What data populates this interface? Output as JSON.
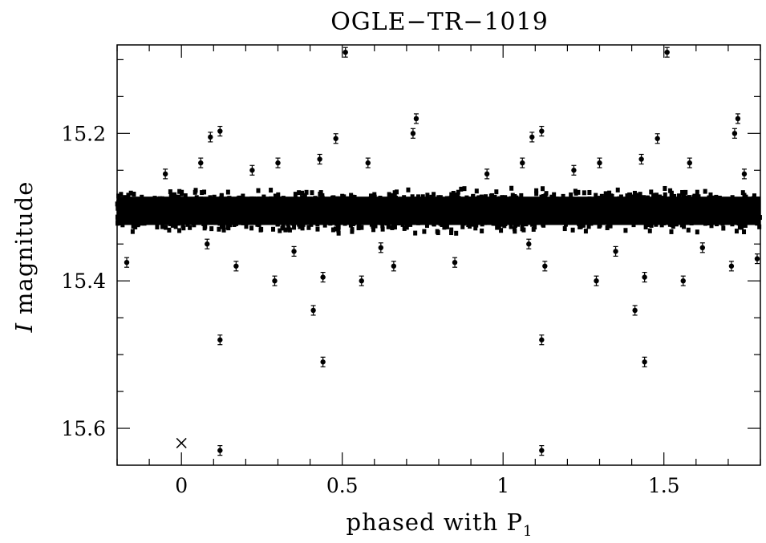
{
  "chart_data": {
    "type": "scatter",
    "title": "OGLE−TR−1019",
    "xlabel": "phased with P",
    "xlabel_subscript": "1",
    "ylabel_italic": "I",
    "ylabel": "magnitude",
    "xlim": [
      -0.2,
      1.8
    ],
    "ylim": [
      15.65,
      15.08
    ],
    "y_inverted": true,
    "x_ticks": [
      0,
      0.5,
      1,
      1.5
    ],
    "x_tick_labels": [
      "0",
      "0.5",
      "1",
      "1.5"
    ],
    "y_ticks": [
      15.2,
      15.4,
      15.6
    ],
    "y_tick_labels": [
      "15.2",
      "15.4",
      "15.6"
    ],
    "grid": false,
    "band": {
      "center": 15.305,
      "half_width": 0.035
    },
    "points": [
      {
        "x": 0.09,
        "y": 15.205
      },
      {
        "x": 0.12,
        "y": 15.197
      },
      {
        "x": 0.12,
        "y": 15.48
      },
      {
        "x": 0.12,
        "y": 15.63
      },
      {
        "x": 0.41,
        "y": 15.44
      },
      {
        "x": 0.44,
        "y": 15.51
      },
      {
        "x": 0.51,
        "y": 15.09
      },
      {
        "x": 0.48,
        "y": 15.207
      },
      {
        "x": 0.73,
        "y": 15.18
      },
      {
        "x": 0.72,
        "y": 15.2
      },
      {
        "x": 0.85,
        "y": 15.375
      },
      {
        "x": 0.44,
        "y": 15.395
      },
      {
        "x": 0.29,
        "y": 15.4
      },
      {
        "x": 0.56,
        "y": 15.4
      },
      {
        "x": -0.17,
        "y": 15.375
      },
      {
        "x": 0.17,
        "y": 15.38
      },
      {
        "x": 0.06,
        "y": 15.24
      },
      {
        "x": 0.43,
        "y": 15.235
      },
      {
        "x": 0.66,
        "y": 15.38
      },
      {
        "x": 1.09,
        "y": 15.205
      },
      {
        "x": 1.12,
        "y": 15.197
      },
      {
        "x": 1.12,
        "y": 15.48
      },
      {
        "x": 1.12,
        "y": 15.63
      },
      {
        "x": 1.41,
        "y": 15.44
      },
      {
        "x": 1.44,
        "y": 15.51
      },
      {
        "x": 1.51,
        "y": 15.09
      },
      {
        "x": 1.48,
        "y": 15.207
      },
      {
        "x": 1.73,
        "y": 15.18
      },
      {
        "x": 1.72,
        "y": 15.2
      },
      {
        "x": 1.44,
        "y": 15.395
      },
      {
        "x": 1.29,
        "y": 15.4
      },
      {
        "x": 1.56,
        "y": 15.4
      },
      {
        "x": 1.13,
        "y": 15.38
      },
      {
        "x": 1.06,
        "y": 15.24
      },
      {
        "x": 1.43,
        "y": 15.235
      },
      {
        "x": 1.71,
        "y": 15.38
      },
      {
        "x": 1.79,
        "y": 15.37
      },
      {
        "x": 1.08,
        "y": 15.35
      },
      {
        "x": 0.08,
        "y": 15.35
      },
      {
        "x": 0.3,
        "y": 15.24
      },
      {
        "x": 0.58,
        "y": 15.24
      },
      {
        "x": 1.3,
        "y": 15.24
      },
      {
        "x": 1.58,
        "y": 15.24
      },
      {
        "x": 0.22,
        "y": 15.25
      },
      {
        "x": 1.22,
        "y": 15.25
      },
      {
        "x": -0.05,
        "y": 15.255
      },
      {
        "x": 0.95,
        "y": 15.255
      },
      {
        "x": 1.75,
        "y": 15.255
      },
      {
        "x": 0.35,
        "y": 15.36
      },
      {
        "x": 1.35,
        "y": 15.36
      },
      {
        "x": 0.62,
        "y": 15.355
      },
      {
        "x": 1.62,
        "y": 15.355
      }
    ],
    "cross_marker": {
      "x": 0.0,
      "y": 15.62
    }
  }
}
